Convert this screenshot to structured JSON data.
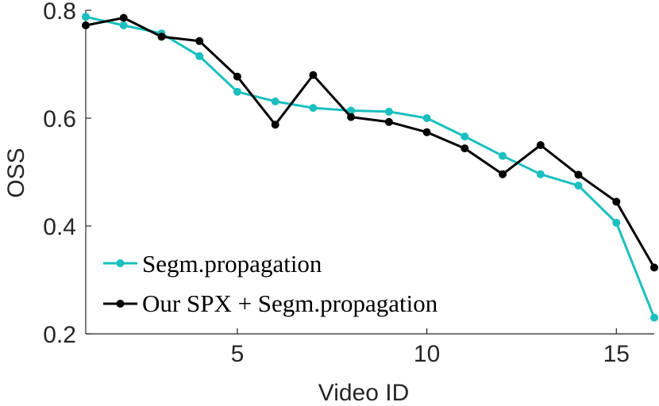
{
  "chart_data": {
    "type": "line",
    "title": "",
    "xlabel": "Video ID",
    "ylabel": "OSS",
    "xlim": [
      1,
      16
    ],
    "ylim": [
      0.2,
      0.8
    ],
    "xticks": [
      5,
      10,
      15
    ],
    "xtick_labels": [
      "5",
      "10",
      "15"
    ],
    "yticks": [
      0.2,
      0.4,
      0.6,
      0.8
    ],
    "ytick_labels": [
      "0.2",
      "0.4",
      "0.6",
      "0.8"
    ],
    "grid": false,
    "legend_position": "bottom-left",
    "x": [
      1,
      2,
      3,
      4,
      5,
      6,
      7,
      8,
      9,
      10,
      11,
      12,
      13,
      14,
      15,
      16
    ],
    "series": [
      {
        "name": "Segm.propagation",
        "color": "#1ABFBF",
        "values": [
          0.788,
          0.772,
          0.757,
          0.715,
          0.649,
          0.631,
          0.619,
          0.614,
          0.612,
          0.6,
          0.566,
          0.53,
          0.496,
          0.475,
          0.406,
          0.23
        ]
      },
      {
        "name": "Our SPX + Segm.propagation",
        "color": "#000000",
        "values": [
          0.772,
          0.786,
          0.751,
          0.743,
          0.677,
          0.588,
          0.68,
          0.602,
          0.593,
          0.574,
          0.544,
          0.496,
          0.55,
          0.495,
          0.445,
          0.323
        ]
      }
    ]
  }
}
